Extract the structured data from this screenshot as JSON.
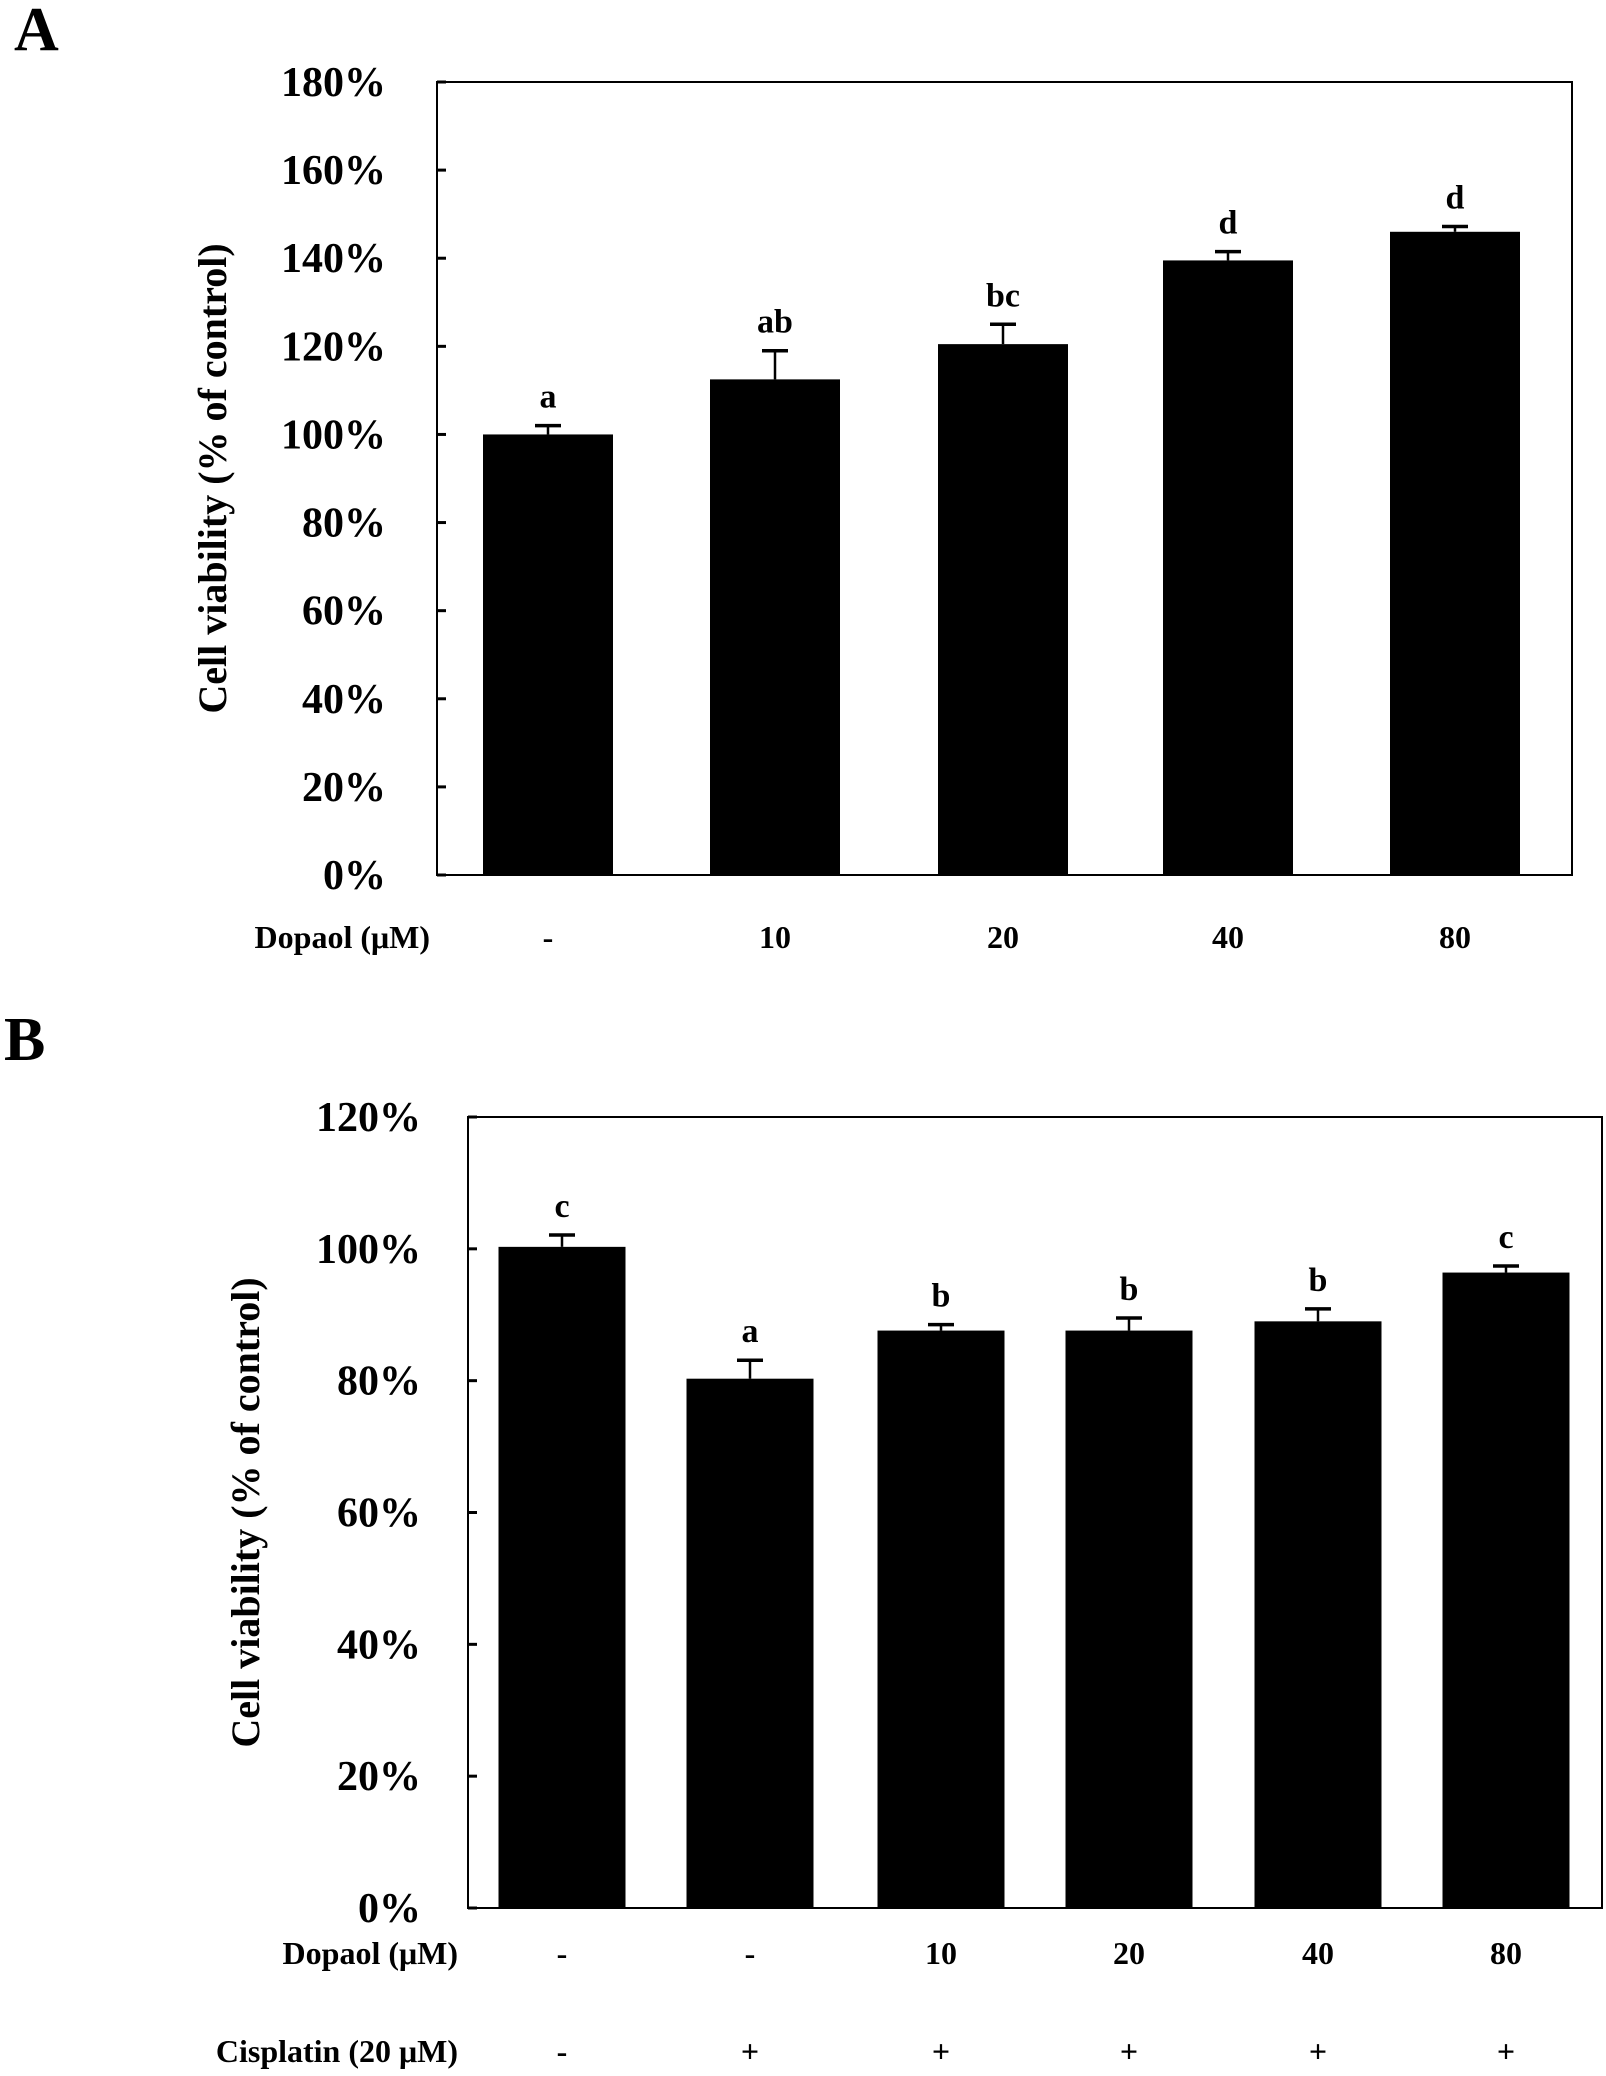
{
  "chart_data": [
    {
      "panel_label": "A",
      "type": "bar",
      "ylabel": "Cell viability (% of control)",
      "ylim": [
        0,
        180
      ],
      "yticks": [
        0,
        20,
        40,
        60,
        80,
        100,
        120,
        140,
        160,
        180
      ],
      "ytick_labels": [
        "0%",
        "20%",
        "40%",
        "60%",
        "80%",
        "100%",
        "120%",
        "140%",
        "160%",
        "180%"
      ],
      "grid": false,
      "bar_color": "#000000",
      "rows": [
        {
          "label": "Dopaol (μM)",
          "values": [
            "-",
            "10",
            "20",
            "40",
            "80"
          ]
        }
      ],
      "values": [
        100,
        112.5,
        120.5,
        139.5,
        146
      ],
      "errors": [
        2,
        6.5,
        4.5,
        2,
        1.2
      ],
      "significance": [
        "a",
        "ab",
        "bc",
        "d",
        "d"
      ]
    },
    {
      "panel_label": "B",
      "type": "bar",
      "ylabel": "Cell viability (% of control)",
      "ylim": [
        0,
        120
      ],
      "yticks": [
        0,
        20,
        40,
        60,
        80,
        100,
        120
      ],
      "ytick_labels": [
        "0%",
        "20%",
        "40%",
        "60%",
        "80%",
        "100%",
        "120%"
      ],
      "grid": false,
      "bar_color": "#000000",
      "rows": [
        {
          "label": "Dopaol (μM)",
          "values": [
            "-",
            "-",
            "10",
            "20",
            "40",
            "80"
          ]
        },
        {
          "label": "Cisplatin (20 μM)",
          "values": [
            "-",
            "+",
            "+",
            "+",
            "+",
            "+"
          ]
        }
      ],
      "values": [
        100.3,
        80.3,
        87.6,
        87.6,
        89,
        96.4
      ],
      "errors": [
        1.8,
        2.8,
        0.9,
        1.9,
        1.9,
        1.0
      ],
      "significance": [
        "c",
        "a",
        "b",
        "b",
        "b",
        "c"
      ]
    }
  ]
}
